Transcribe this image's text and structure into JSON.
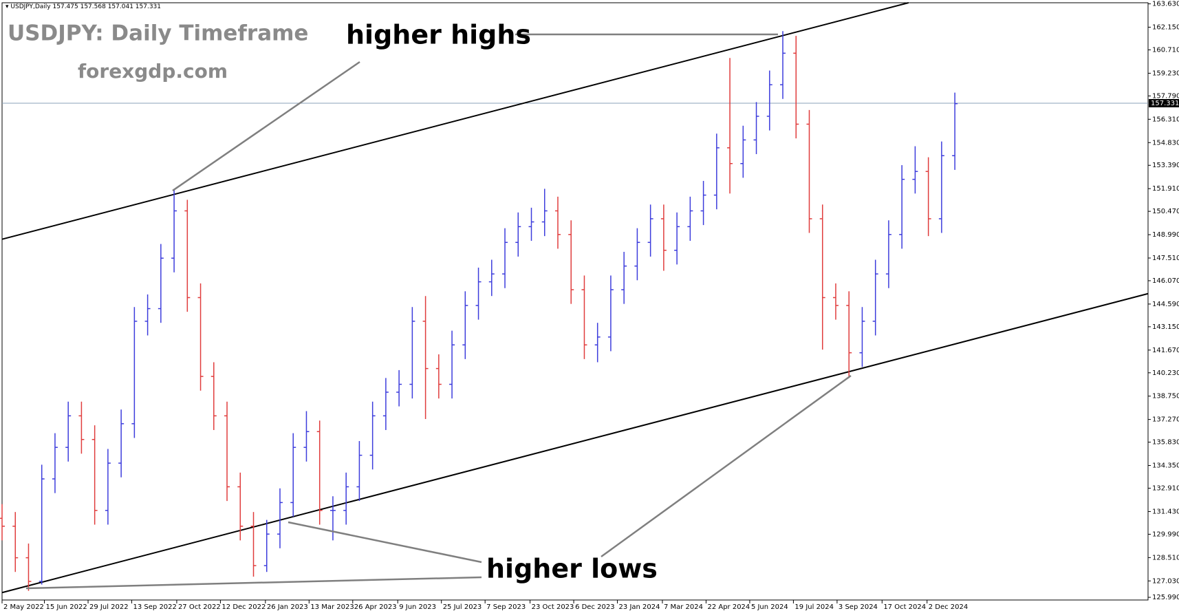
{
  "chart_data": {
    "type": "ohlc",
    "header": {
      "symbol": "USDJPY,Daily",
      "ohlc": [
        157.475,
        157.568,
        157.041,
        157.331
      ]
    },
    "title": "USDJPY: Daily Timeframe",
    "subtitle": "forexgdp.com",
    "annotations": [
      "higher highs",
      "higher lows"
    ],
    "current_price": 157.331,
    "current_price_color": "#8aa0b8",
    "up_color": "#3c3cdc",
    "down_color": "#e03c3c",
    "x": [
      0,
      10,
      20,
      30,
      40,
      50,
      60,
      70,
      80,
      90,
      100,
      110,
      120,
      130,
      140,
      150,
      160,
      170,
      180,
      190,
      200,
      210,
      220,
      230,
      240,
      250,
      260,
      270,
      280,
      290,
      300,
      310,
      320,
      330,
      340,
      350,
      360,
      370,
      380,
      390,
      400,
      410,
      420,
      430,
      440,
      450,
      460,
      470,
      480,
      490,
      500,
      510,
      520,
      530,
      540,
      550,
      560,
      570,
      580,
      590,
      600,
      610,
      620,
      630,
      640,
      650,
      660,
      670,
      680,
      690,
      700,
      710,
      720
    ],
    "open": [
      131.0,
      130.5,
      128.5,
      127.0,
      133.5,
      135.5,
      137.5,
      136.0,
      131.5,
      134.5,
      137.0,
      143.5,
      144.3,
      147.5,
      150.5,
      145.0,
      140.0,
      137.5,
      133.0,
      130.5,
      128.0,
      130.0,
      132.0,
      135.5,
      136.5,
      131.5,
      131.5,
      133.0,
      135.0,
      137.5,
      139.0,
      139.5,
      143.5,
      140.5,
      139.5,
      142.0,
      144.5,
      146.0,
      146.5,
      148.5,
      149.5,
      149.8,
      150.5,
      149.0,
      145.5,
      142.0,
      142.5,
      145.5,
      147.0,
      148.5,
      150.0,
      148.0,
      149.5,
      150.5,
      151.5,
      154.5,
      153.5,
      155.0,
      156.5,
      158.5,
      160.5,
      156.0,
      150.0,
      145.0,
      144.5,
      141.5,
      143.5,
      146.5,
      149.0,
      152.5,
      153.0,
      150.0,
      154.0
    ],
    "high": [
      131.9,
      131.4,
      129.4,
      134.4,
      136.4,
      138.4,
      138.4,
      136.9,
      135.4,
      137.9,
      144.4,
      145.2,
      148.4,
      151.9,
      151.2,
      145.9,
      140.9,
      138.4,
      133.9,
      131.4,
      130.9,
      132.9,
      136.4,
      137.8,
      137.2,
      132.4,
      133.9,
      135.9,
      138.4,
      139.9,
      140.4,
      144.4,
      145.1,
      141.4,
      142.9,
      145.4,
      146.9,
      147.4,
      149.4,
      150.4,
      150.7,
      151.9,
      151.4,
      149.9,
      146.4,
      143.4,
      146.4,
      147.9,
      149.4,
      150.9,
      150.9,
      150.4,
      151.4,
      152.4,
      155.4,
      160.2,
      155.9,
      157.4,
      159.4,
      161.9,
      161.6,
      156.9,
      150.9,
      145.9,
      145.4,
      144.4,
      147.4,
      149.9,
      153.4,
      154.6,
      153.9,
      154.9,
      158.0
    ],
    "low": [
      129.6,
      127.6,
      126.4,
      126.8,
      132.6,
      134.6,
      135.1,
      130.6,
      130.6,
      133.6,
      136.1,
      142.6,
      143.4,
      146.6,
      144.1,
      139.1,
      136.6,
      132.1,
      129.6,
      127.3,
      127.6,
      129.1,
      131.1,
      134.6,
      130.6,
      129.6,
      130.6,
      132.1,
      134.1,
      136.6,
      138.1,
      138.6,
      137.3,
      138.6,
      138.6,
      141.1,
      143.6,
      145.1,
      145.6,
      147.6,
      148.6,
      148.9,
      148.1,
      144.6,
      141.1,
      140.9,
      141.6,
      144.6,
      146.1,
      147.6,
      146.7,
      147.1,
      148.6,
      149.6,
      150.6,
      151.6,
      152.6,
      154.1,
      155.6,
      157.6,
      155.1,
      149.1,
      141.7,
      143.6,
      139.9,
      140.6,
      142.6,
      145.6,
      148.1,
      151.6,
      148.9,
      149.1,
      153.1
    ],
    "close": [
      130.5,
      128.5,
      127.0,
      133.5,
      135.5,
      137.5,
      136.0,
      131.5,
      134.5,
      137.0,
      143.5,
      144.3,
      147.5,
      150.5,
      145.0,
      140.0,
      137.5,
      133.0,
      130.5,
      128.0,
      130.0,
      132.0,
      135.5,
      136.5,
      131.5,
      131.5,
      133.0,
      135.0,
      137.5,
      139.0,
      139.5,
      143.5,
      140.5,
      139.5,
      142.0,
      144.5,
      146.0,
      146.5,
      148.5,
      149.5,
      149.8,
      150.5,
      149.0,
      145.5,
      142.0,
      142.5,
      145.5,
      147.0,
      148.5,
      150.0,
      148.0,
      149.5,
      150.5,
      151.5,
      154.5,
      153.5,
      155.0,
      156.5,
      158.5,
      160.5,
      156.0,
      150.0,
      145.0,
      144.5,
      141.5,
      143.5,
      146.5,
      149.0,
      152.5,
      153.0,
      150.0,
      154.0,
      157.3
    ],
    "trendlines": [
      [
        [
          0,
          148.7
        ],
        [
          685,
          163.7
        ]
      ],
      [
        [
          0,
          126.29
        ],
        [
          866,
          145.25
        ]
      ]
    ],
    "xlim": [
      0,
      866
    ],
    "ylim": [
      125.82,
      163.7
    ],
    "xticks": [
      {
        "value": 0,
        "label": "2 May 2022"
      },
      {
        "value": 32,
        "label": "15 Jun 2022"
      },
      {
        "value": 65,
        "label": "29 Jul 2022"
      },
      {
        "value": 98,
        "label": "13 Sep 2022"
      },
      {
        "value": 132,
        "label": "27 Oct 2022"
      },
      {
        "value": 165,
        "label": "12 Dec 2022"
      },
      {
        "value": 199,
        "label": "26 Jan 2023"
      },
      {
        "value": 232,
        "label": "13 Mar 2023"
      },
      {
        "value": 265,
        "label": "26 Apr 2023"
      },
      {
        "value": 299,
        "label": "9 Jun 2023"
      },
      {
        "value": 332,
        "label": "25 Jul 2023"
      },
      {
        "value": 365,
        "label": "7 Sep 2023"
      },
      {
        "value": 399,
        "label": "23 Oct 2023"
      },
      {
        "value": 432,
        "label": "6 Dec 2023"
      },
      {
        "value": 465,
        "label": "23 Jan 2024"
      },
      {
        "value": 499,
        "label": "7 Mar 2024"
      },
      {
        "value": 532,
        "label": "22 Apr 2024"
      },
      {
        "value": 565,
        "label": "5 Jun 2024"
      },
      {
        "value": 598,
        "label": "19 Jul 2024"
      },
      {
        "value": 631,
        "label": "3 Sep 2024"
      },
      {
        "value": 665,
        "label": "17 Oct 2024"
      },
      {
        "value": 699,
        "label": "2 Dec 2024"
      }
    ],
    "yticks": [
      {
        "value": 163.63,
        "label": "163.630"
      },
      {
        "value": 162.15,
        "label": "162.150"
      },
      {
        "value": 160.71,
        "label": "160.710"
      },
      {
        "value": 159.23,
        "label": "159.230"
      },
      {
        "value": 157.79,
        "label": "157.790"
      },
      {
        "value": 156.31,
        "label": "156.310"
      },
      {
        "value": 154.83,
        "label": "154.830"
      },
      {
        "value": 153.39,
        "label": "153.390"
      },
      {
        "value": 151.91,
        "label": "151.910"
      },
      {
        "value": 150.47,
        "label": "150.470"
      },
      {
        "value": 148.99,
        "label": "148.990"
      },
      {
        "value": 147.51,
        "label": "147.510"
      },
      {
        "value": 146.07,
        "label": "146.070"
      },
      {
        "value": 144.59,
        "label": "144.590"
      },
      {
        "value": 143.15,
        "label": "143.150"
      },
      {
        "value": 141.67,
        "label": "141.670"
      },
      {
        "value": 140.23,
        "label": "140.230"
      },
      {
        "value": 138.75,
        "label": "138.750"
      },
      {
        "value": 137.27,
        "label": "137.270"
      },
      {
        "value": 135.83,
        "label": "135.830"
      },
      {
        "value": 134.35,
        "label": "134.350"
      },
      {
        "value": 132.91,
        "label": "132.910"
      },
      {
        "value": 131.43,
        "label": "131.430"
      },
      {
        "value": 129.99,
        "label": "129.990"
      },
      {
        "value": 128.51,
        "label": "128.510"
      },
      {
        "value": 127.03,
        "label": "127.030"
      },
      {
        "value": 125.99,
        "label": "125.990"
      }
    ]
  }
}
